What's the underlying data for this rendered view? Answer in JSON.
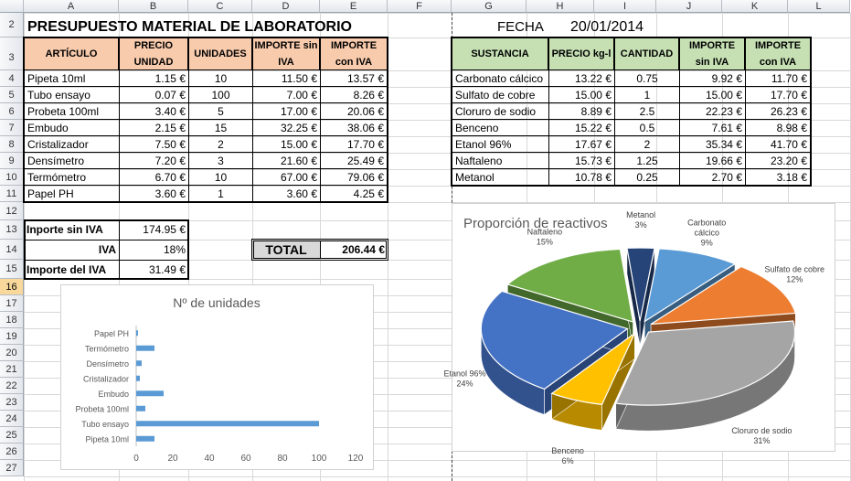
{
  "columns": [
    "A",
    "B",
    "C",
    "D",
    "E",
    "F",
    "G",
    "H",
    "I",
    "J",
    "K",
    "L"
  ],
  "rows": [
    "2",
    "3",
    "4",
    "5",
    "6",
    "7",
    "8",
    "9",
    "10",
    "11",
    "12",
    "13",
    "14",
    "15",
    "16",
    "17",
    "18",
    "19",
    "20",
    "21",
    "22",
    "23",
    "24",
    "25",
    "26",
    "27"
  ],
  "title": "PRESUPUESTO MATERIAL DE LABORATORIO",
  "fecha_label": "FECHA",
  "fecha_value": "20/01/2014",
  "left_table": {
    "headers": [
      "ARTÍCULO",
      "PRECIO UNIDAD",
      "UNIDADES",
      "IMPORTE sin IVA",
      "IMPORTE con IVA"
    ],
    "rows": [
      [
        "Pipeta 10ml",
        "1.15 €",
        "10",
        "11.50 €",
        "13.57 €"
      ],
      [
        "Tubo ensayo",
        "0.07 €",
        "100",
        "7.00 €",
        "8.26 €"
      ],
      [
        "Probeta 100ml",
        "3.40 €",
        "5",
        "17.00 €",
        "20.06 €"
      ],
      [
        "Embudo",
        "2.15 €",
        "15",
        "32.25 €",
        "38.06 €"
      ],
      [
        "Cristalizador",
        "7.50 €",
        "2",
        "15.00 €",
        "17.70 €"
      ],
      [
        "Densímetro",
        "7.20 €",
        "3",
        "21.60 €",
        "25.49 €"
      ],
      [
        "Termómetro",
        "6.70 €",
        "10",
        "67.00 €",
        "79.06 €"
      ],
      [
        "Papel PH",
        "3.60 €",
        "1",
        "3.60 €",
        "4.25 €"
      ]
    ]
  },
  "summary": {
    "importe_sin_iva_label": "Inporte sin IVA",
    "importe_sin_iva_value": "174.95 €",
    "iva_label": "IVA",
    "iva_value": "18%",
    "importe_iva_label": "Importe del IVA",
    "importe_iva_value": "31.49 €",
    "total_label": "TOTAL",
    "total_value": "206.44 €"
  },
  "right_table": {
    "headers": [
      "SUSTANCIA",
      "PRECIO kg-l",
      "CANTIDAD",
      "IMPORTE sin IVA",
      "IMPORTE con IVA"
    ],
    "rows": [
      [
        "Carbonato cálcico",
        "13.22 €",
        "0.75",
        "9.92 €",
        "11.70 €"
      ],
      [
        "Sulfato de cobre",
        "15.00 €",
        "1",
        "15.00 €",
        "17.70 €"
      ],
      [
        "Cloruro de sodio",
        "8.89 €",
        "2.5",
        "22.23 €",
        "26.23 €"
      ],
      [
        "Benceno",
        "15.22 €",
        "0.5",
        "7.61 €",
        "8.98 €"
      ],
      [
        "Etanol 96%",
        "17.67 €",
        "2",
        "35.34 €",
        "41.70 €"
      ],
      [
        "Naftaleno",
        "15.73 €",
        "1.25",
        "19.66 €",
        "23.20 €"
      ],
      [
        "Metanol",
        "10.78 €",
        "0.25",
        "2.70 €",
        "3.18 €"
      ]
    ]
  },
  "chart_data": [
    {
      "type": "bar",
      "orientation": "horizontal",
      "title": "Nº de unidades",
      "categories": [
        "Pipeta 10ml",
        "Tubo ensayo",
        "Probeta 100ml",
        "Embudo",
        "Cristalizador",
        "Densímetro",
        "Termómetro",
        "Papel PH"
      ],
      "values": [
        10,
        100,
        5,
        15,
        2,
        3,
        10,
        1
      ],
      "xlim": [
        0,
        120
      ],
      "xticks": [
        "0",
        "20",
        "40",
        "60",
        "80",
        "100",
        "120"
      ],
      "bar_color": "#5b9bd5",
      "grid": false
    },
    {
      "type": "pie",
      "style": "3d-exploded",
      "title": "Proporción de reactivos",
      "slices": [
        {
          "label": "Carbonato cálcico",
          "pct": "9%",
          "value": 9,
          "color": "#5b9bd5"
        },
        {
          "label": "Sulfato de cobre",
          "pct": "12%",
          "value": 12,
          "color": "#ed7d31"
        },
        {
          "label": "Cloruro de sodio",
          "pct": "31%",
          "value": 31,
          "color": "#a5a5a5"
        },
        {
          "label": "Benceno",
          "pct": "6%",
          "value": 6,
          "color": "#ffc000"
        },
        {
          "label": "Etanol 96%",
          "pct": "24%",
          "value": 24,
          "color": "#4472c4"
        },
        {
          "label": "Naftaleno",
          "pct": "15%",
          "value": 15,
          "color": "#70ad47"
        },
        {
          "label": "Metanol",
          "pct": "3%",
          "value": 3,
          "color": "#264478"
        }
      ]
    }
  ]
}
